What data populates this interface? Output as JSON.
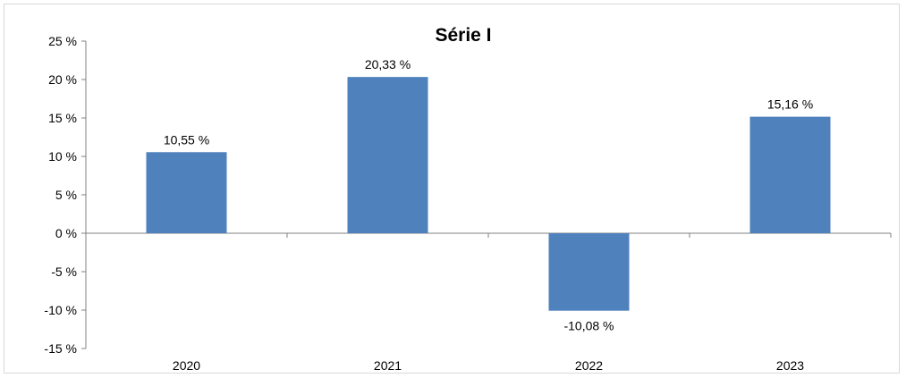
{
  "chart_data": {
    "type": "bar",
    "title": "Série I",
    "categories": [
      "2020",
      "2021",
      "2022",
      "2023"
    ],
    "values": [
      10.55,
      20.33,
      -10.08,
      15.16
    ],
    "data_labels": [
      "10,55 %",
      "20,33 %",
      "-10,08 %",
      "15,16 %"
    ],
    "yticks": [
      25,
      20,
      15,
      10,
      5,
      0,
      -5,
      -10,
      -15
    ],
    "ytick_labels": [
      "25 %",
      "20 %",
      "15 %",
      "10 %",
      "5 %",
      "0 %",
      "-5 %",
      "-10 %",
      "-15 %"
    ],
    "ylim": [
      -15,
      25
    ],
    "grid": false,
    "legend": "none",
    "bar_color": "#4f81bd",
    "xlabel": "",
    "ylabel": ""
  }
}
